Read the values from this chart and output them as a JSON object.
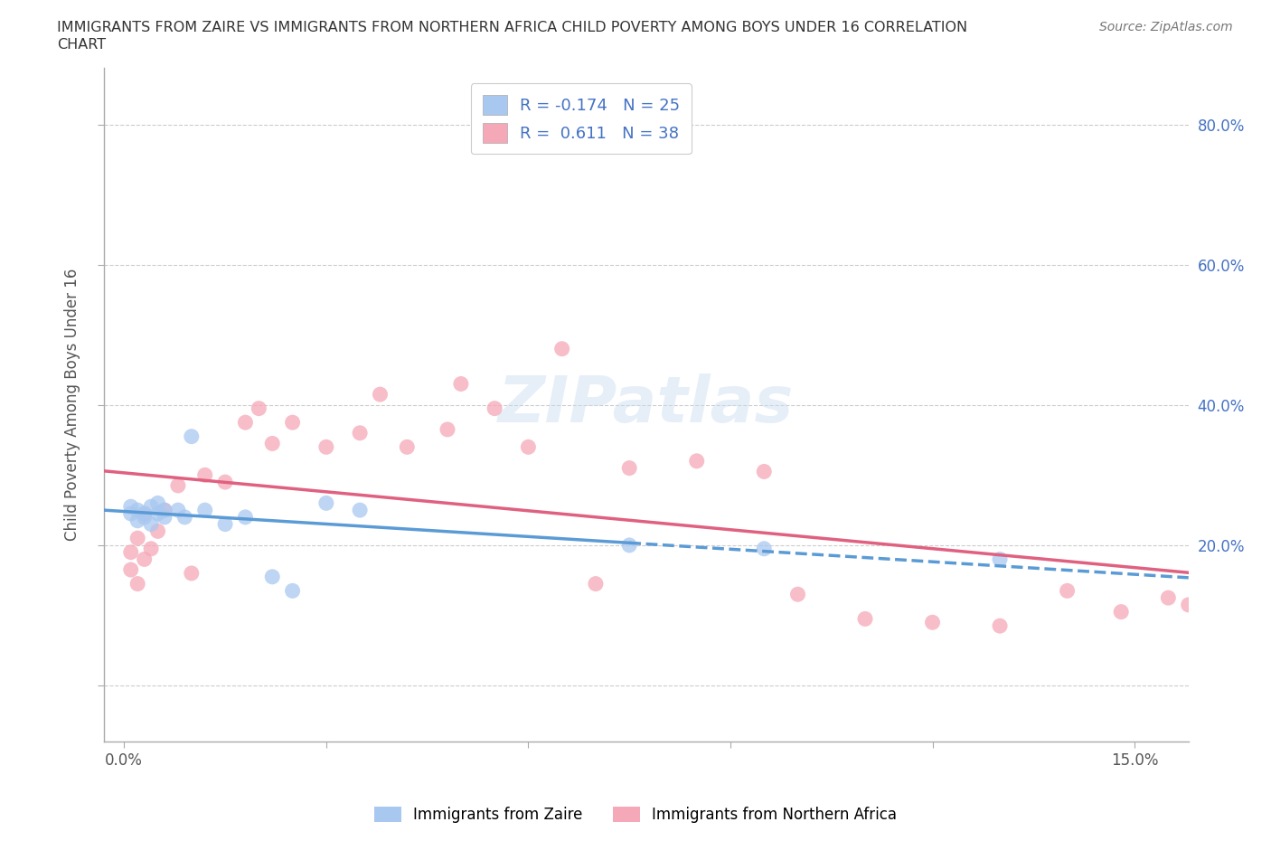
{
  "title_line1": "IMMIGRANTS FROM ZAIRE VS IMMIGRANTS FROM NORTHERN AFRICA CHILD POVERTY AMONG BOYS UNDER 16 CORRELATION",
  "title_line2": "CHART",
  "source": "Source: ZipAtlas.com",
  "ylabel": "Child Poverty Among Boys Under 16",
  "x_ticks": [
    0.0,
    0.03,
    0.06,
    0.09,
    0.12,
    0.15
  ],
  "x_tick_labels": [
    "0.0%",
    "",
    "",
    "",
    "",
    "15.0%"
  ],
  "y_ticks": [
    0.0,
    0.2,
    0.4,
    0.6,
    0.8
  ],
  "y_tick_labels": [
    "",
    "20.0%",
    "40.0%",
    "60.0%",
    "80.0%"
  ],
  "xlim": [
    -0.003,
    0.158
  ],
  "ylim": [
    -0.08,
    0.88
  ],
  "zaire_color": "#a8c8f0",
  "zaire_line_color": "#5b9bd5",
  "northern_africa_color": "#f5a8b8",
  "northern_africa_line_color": "#e06080",
  "zaire_R": -0.174,
  "zaire_N": 25,
  "northern_africa_R": 0.611,
  "northern_africa_N": 38,
  "legend_label_zaire": "Immigrants from Zaire",
  "legend_label_north": "Immigrants from Northern Africa",
  "zaire_x": [
    0.001,
    0.001,
    0.002,
    0.002,
    0.003,
    0.003,
    0.004,
    0.004,
    0.005,
    0.005,
    0.006,
    0.006,
    0.008,
    0.009,
    0.01,
    0.012,
    0.015,
    0.018,
    0.022,
    0.025,
    0.03,
    0.035,
    0.075,
    0.095,
    0.13
  ],
  "zaire_y": [
    0.245,
    0.255,
    0.235,
    0.25,
    0.24,
    0.245,
    0.23,
    0.255,
    0.245,
    0.26,
    0.24,
    0.25,
    0.25,
    0.24,
    0.355,
    0.25,
    0.23,
    0.24,
    0.155,
    0.135,
    0.26,
    0.25,
    0.2,
    0.195,
    0.18
  ],
  "north_x": [
    0.001,
    0.001,
    0.002,
    0.002,
    0.003,
    0.003,
    0.004,
    0.005,
    0.006,
    0.008,
    0.01,
    0.012,
    0.015,
    0.018,
    0.02,
    0.022,
    0.025,
    0.03,
    0.035,
    0.038,
    0.042,
    0.048,
    0.05,
    0.055,
    0.06,
    0.065,
    0.07,
    0.075,
    0.085,
    0.095,
    0.1,
    0.11,
    0.12,
    0.13,
    0.14,
    0.148,
    0.155,
    0.158
  ],
  "north_y": [
    0.165,
    0.19,
    0.145,
    0.21,
    0.18,
    0.245,
    0.195,
    0.22,
    0.25,
    0.285,
    0.16,
    0.3,
    0.29,
    0.375,
    0.395,
    0.345,
    0.375,
    0.34,
    0.36,
    0.415,
    0.34,
    0.365,
    0.43,
    0.395,
    0.34,
    0.48,
    0.145,
    0.31,
    0.32,
    0.305,
    0.13,
    0.095,
    0.09,
    0.085,
    0.135,
    0.105,
    0.125,
    0.115
  ]
}
